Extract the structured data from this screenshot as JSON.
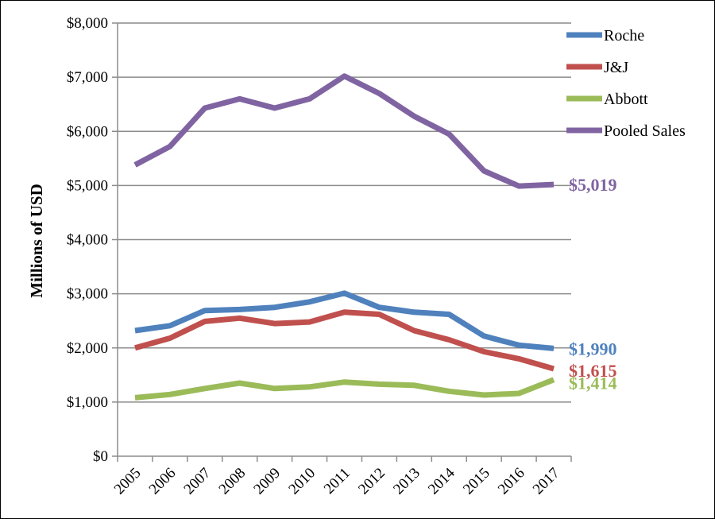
{
  "chart_data": {
    "type": "line",
    "title": "",
    "xlabel": "",
    "ylabel": "Millions of USD",
    "x": [
      "2005",
      "2006",
      "2007",
      "2008",
      "2009",
      "2010",
      "2011",
      "2012",
      "2013",
      "2014",
      "2015",
      "2016",
      "2017"
    ],
    "ylim": [
      0,
      8000
    ],
    "yticks": [
      "$0",
      "$1,000",
      "$2,000",
      "$3,000",
      "$4,000",
      "$5,000",
      "$6,000",
      "$7,000",
      "$8,000"
    ],
    "grid": "horizontal",
    "legend_position": "top-right",
    "series": [
      {
        "name": "Roche",
        "color": "#4f81bd",
        "values": [
          2320,
          2410,
          2690,
          2710,
          2750,
          2850,
          3010,
          2750,
          2660,
          2620,
          2220,
          2050,
          1990
        ],
        "end_label": "$1,990"
      },
      {
        "name": "J&J",
        "color": "#c0504d",
        "values": [
          2000,
          2180,
          2490,
          2550,
          2450,
          2480,
          2660,
          2620,
          2320,
          2150,
          1930,
          1800,
          1615
        ],
        "end_label": "$1,615"
      },
      {
        "name": "Abbott",
        "color": "#9bbb59",
        "values": [
          1080,
          1140,
          1250,
          1350,
          1250,
          1280,
          1370,
          1330,
          1310,
          1200,
          1130,
          1160,
          1414
        ],
        "end_label": "$1,414"
      },
      {
        "name": "Pooled Sales",
        "color": "#8064a2",
        "values": [
          5380,
          5720,
          6430,
          6600,
          6430,
          6600,
          7020,
          6700,
          6280,
          5950,
          5270,
          4990,
          5019
        ],
        "end_label": "$5,019"
      }
    ]
  }
}
